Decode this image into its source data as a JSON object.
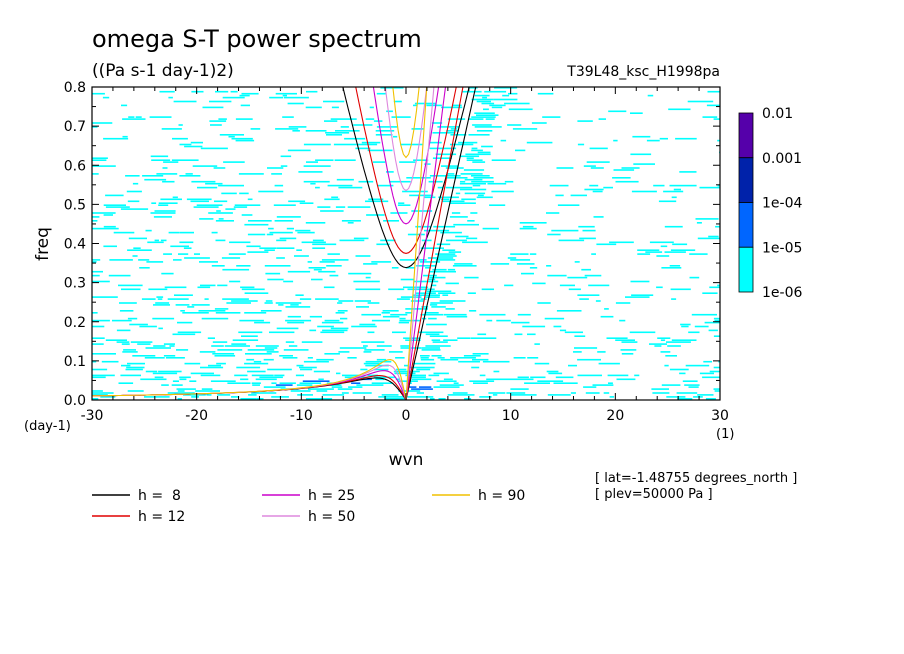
{
  "chart_data": {
    "type": "heatmap",
    "title": "omega S-T power spectrum",
    "units": "((Pa s-1 day-1)2)",
    "dataset": "T39L48_ksc_H1998pa",
    "xlabel": "wvn",
    "ylabel": "freq",
    "x_unit": "(1)",
    "y_unit": "(day-1)",
    "xlim": [
      -30,
      30
    ],
    "ylim": [
      0,
      0.8
    ],
    "x_ticks": [
      "-30",
      "-20",
      "-10",
      "0",
      "10",
      "20",
      "30"
    ],
    "y_ticks": [
      "0.0",
      "0.1",
      "0.2",
      "0.3",
      "0.4",
      "0.5",
      "0.6",
      "0.7",
      "0.8"
    ],
    "colorbar": {
      "levels": [
        "0.01",
        "0.001",
        "1e-04",
        "1e-05",
        "1e-06"
      ],
      "colors": [
        "#5500aa",
        "#0022aa",
        "#0066ff",
        "#00ffff"
      ]
    },
    "dispersion_curves": [
      {
        "label": "h =  8",
        "h": 8,
        "color": "#000000"
      },
      {
        "label": "h = 12",
        "h": 12,
        "color": "#e00000"
      },
      {
        "label": "h = 25",
        "h": 25,
        "color": "#cc00cc"
      },
      {
        "label": "h = 50",
        "h": 50,
        "color": "#dd88dd"
      },
      {
        "label": "h = 90",
        "h": 90,
        "color": "#f0c000"
      }
    ],
    "info": [
      "[ lat=-1.48755 degrees_north ]",
      "[ plev=50000 Pa ]"
    ]
  }
}
